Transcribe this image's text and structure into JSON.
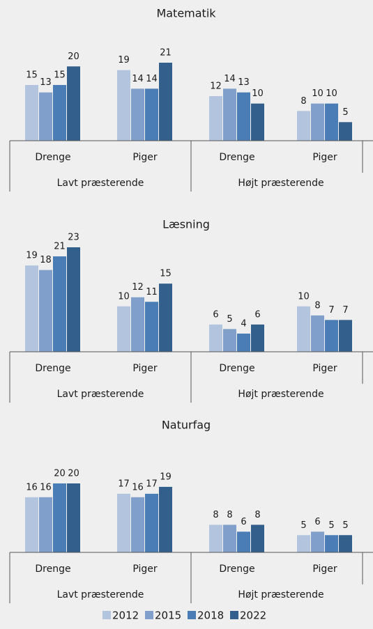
{
  "chart_data": [
    {
      "type": "bar",
      "title": "Matematik",
      "categories": [
        "Drenge",
        "Piger",
        "Drenge",
        "Piger"
      ],
      "groups": [
        "Lavt præsterende",
        "Højt præsterende"
      ],
      "series": [
        {
          "values": [
            15,
            19,
            12,
            8
          ]
        },
        {
          "values": [
            13,
            14,
            14,
            10
          ]
        },
        {
          "values": [
            15,
            14,
            13,
            10
          ]
        },
        {
          "values": [
            20,
            21,
            10,
            5
          ]
        }
      ]
    },
    {
      "type": "bar",
      "title": "Læsning",
      "categories": [
        "Drenge",
        "Piger",
        "Drenge",
        "Piger"
      ],
      "groups": [
        "Lavt præsterende",
        "Højt præsterende"
      ],
      "series": [
        {
          "values": [
            19,
            10,
            6,
            10
          ]
        },
        {
          "values": [
            18,
            12,
            5,
            8
          ]
        },
        {
          "values": [
            21,
            11,
            4,
            7
          ]
        },
        {
          "values": [
            23,
            15,
            6,
            7
          ]
        }
      ]
    },
    {
      "type": "bar",
      "title": "Naturfag",
      "categories": [
        "Drenge",
        "Piger",
        "Drenge",
        "Piger"
      ],
      "groups": [
        "Lavt præsterende",
        "Højt præsterende"
      ],
      "series": [
        {
          "values": [
            16,
            17,
            8,
            5
          ]
        },
        {
          "values": [
            16,
            16,
            8,
            6
          ]
        },
        {
          "values": [
            20,
            17,
            6,
            5
          ]
        },
        {
          "values": [
            20,
            19,
            8,
            5
          ]
        }
      ]
    }
  ],
  "legend": {
    "names": [
      "2012",
      "2015",
      "2018",
      "2022"
    ],
    "colors": [
      "#b3c5de",
      "#809fca",
      "#4a7db5",
      "#335f8c"
    ]
  }
}
